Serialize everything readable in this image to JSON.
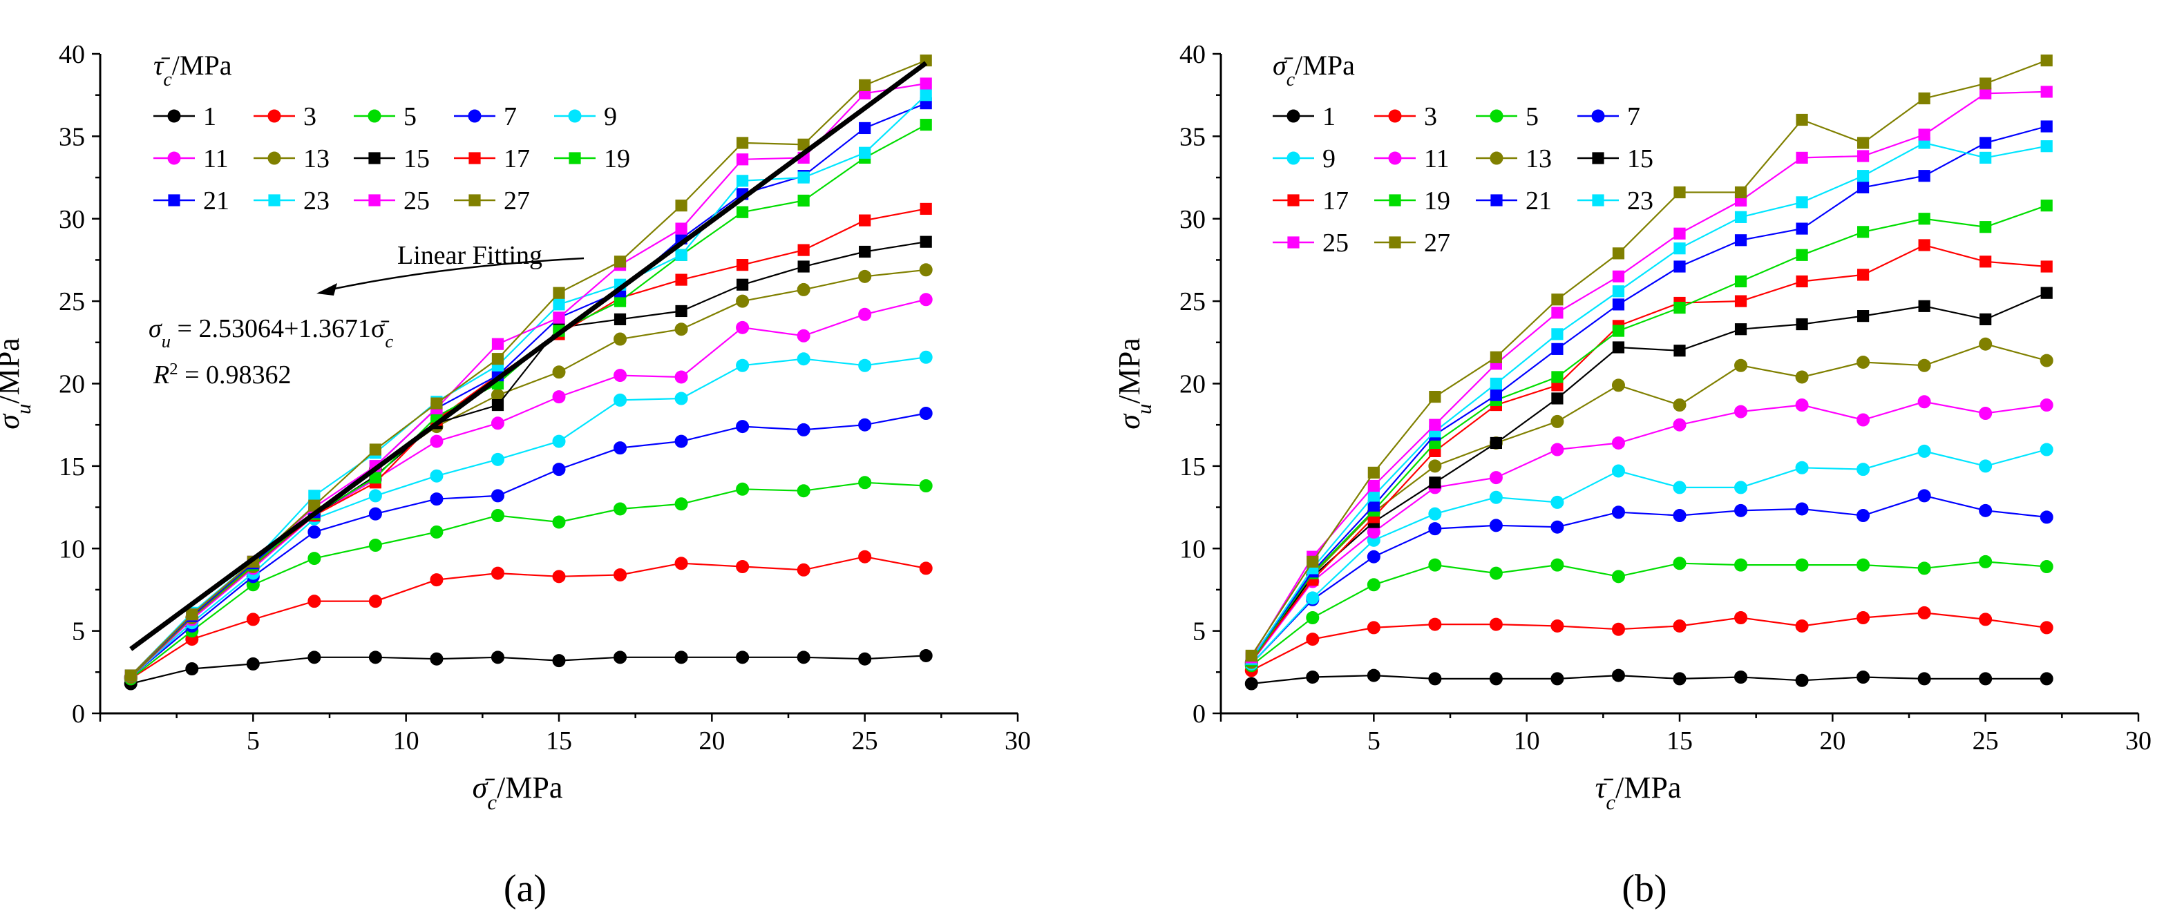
{
  "figure": {
    "panel_a_label": "(a)",
    "panel_b_label": "(b)"
  },
  "chart_data": [
    {
      "panel": "a",
      "type": "line",
      "xlabel": "σ̄c /MPa",
      "ylabel": "σu /MPa",
      "legend_title": "τ̄c /MPa",
      "xlim": [
        0,
        30
      ],
      "ylim": [
        0,
        40
      ],
      "xticks": [
        5,
        10,
        15,
        20,
        25,
        30
      ],
      "yticks": [
        0,
        5,
        10,
        15,
        20,
        25,
        30,
        35,
        40
      ],
      "x": [
        1,
        3,
        5,
        7,
        9,
        11,
        13,
        15,
        17,
        19,
        21,
        23,
        25,
        27
      ],
      "legend_columns": 5,
      "series": [
        {
          "name": "1",
          "color": "#000000",
          "marker": "circle",
          "values": [
            1.8,
            2.7,
            3.0,
            3.4,
            3.4,
            3.3,
            3.4,
            3.2,
            3.4,
            3.4,
            3.4,
            3.4,
            3.3,
            3.5
          ]
        },
        {
          "name": "3",
          "color": "#ff0000",
          "marker": "circle",
          "values": [
            2.1,
            4.5,
            5.7,
            6.8,
            6.8,
            8.1,
            8.5,
            8.3,
            8.4,
            9.1,
            8.9,
            8.7,
            9.5,
            8.8
          ]
        },
        {
          "name": "5",
          "color": "#00dd00",
          "marker": "circle",
          "values": [
            2.1,
            5.0,
            7.8,
            9.4,
            10.2,
            11.0,
            12.0,
            11.6,
            12.4,
            12.7,
            13.6,
            13.5,
            14.0,
            13.8
          ]
        },
        {
          "name": "7",
          "color": "#0000ff",
          "marker": "circle",
          "values": [
            2.2,
            5.3,
            8.3,
            11.0,
            12.1,
            13.0,
            13.2,
            14.8,
            16.1,
            16.5,
            17.4,
            17.2,
            17.5,
            18.2
          ]
        },
        {
          "name": "9",
          "color": "#00e5ff",
          "marker": "circle",
          "values": [
            2.2,
            5.5,
            8.5,
            11.8,
            13.2,
            14.4,
            15.4,
            16.5,
            19.0,
            19.1,
            21.1,
            21.5,
            21.1,
            21.6
          ]
        },
        {
          "name": "11",
          "color": "#ff00ff",
          "marker": "circle",
          "values": [
            2.2,
            5.7,
            8.8,
            12.0,
            14.2,
            16.5,
            17.6,
            19.2,
            20.5,
            20.4,
            23.4,
            22.9,
            24.2,
            25.1
          ]
        },
        {
          "name": "13",
          "color": "#808000",
          "marker": "circle",
          "values": [
            2.2,
            5.8,
            8.9,
            12.1,
            14.8,
            17.4,
            19.3,
            20.7,
            22.7,
            23.3,
            25.0,
            25.7,
            26.5,
            26.9
          ]
        },
        {
          "name": "15",
          "color": "#000000",
          "marker": "square",
          "values": [
            2.3,
            5.9,
            9.0,
            12.0,
            14.4,
            17.6,
            18.7,
            23.4,
            23.9,
            24.4,
            26.0,
            27.1,
            28.0,
            28.6
          ]
        },
        {
          "name": "17",
          "color": "#ff0000",
          "marker": "square",
          "values": [
            2.3,
            5.9,
            9.0,
            12.0,
            14.0,
            17.8,
            20.5,
            23.0,
            25.2,
            26.3,
            27.2,
            28.1,
            29.9,
            30.6
          ]
        },
        {
          "name": "19",
          "color": "#00dd00",
          "marker": "square",
          "values": [
            2.3,
            5.9,
            9.0,
            12.1,
            14.3,
            18.0,
            20.0,
            23.2,
            25.0,
            27.8,
            30.4,
            31.1,
            33.7,
            35.7
          ]
        },
        {
          "name": "21",
          "color": "#0000ff",
          "marker": "square",
          "values": [
            2.3,
            5.9,
            9.1,
            12.2,
            15.0,
            18.5,
            20.5,
            24.0,
            25.6,
            28.8,
            31.5,
            32.6,
            35.5,
            37.0
          ]
        },
        {
          "name": "23",
          "color": "#00e5ff",
          "marker": "square",
          "values": [
            2.3,
            6.1,
            9.2,
            13.2,
            15.8,
            18.9,
            21.1,
            24.8,
            26.0,
            27.8,
            32.3,
            32.5,
            34.0,
            37.5
          ]
        },
        {
          "name": "25",
          "color": "#ff00ff",
          "marker": "square",
          "values": [
            2.3,
            6.0,
            9.2,
            12.5,
            15.0,
            18.5,
            22.4,
            24.0,
            27.2,
            29.4,
            33.6,
            33.7,
            37.6,
            38.2
          ]
        },
        {
          "name": "27",
          "color": "#808000",
          "marker": "square",
          "values": [
            2.3,
            6.0,
            9.2,
            12.6,
            16.0,
            18.8,
            21.5,
            25.5,
            27.4,
            30.8,
            34.6,
            34.5,
            38.1,
            39.6
          ]
        }
      ],
      "fit_line": {
        "label": "Linear Fitting",
        "intercept": 2.53064,
        "slope": 1.3671,
        "x_range": [
          1,
          27
        ]
      },
      "annotations": {
        "equation_lhs": "σ",
        "equation_sub": "u",
        "equation_rhs": " = 2.53064+1.3671σ̄",
        "equation_rhs_sub": "c",
        "r2_label": "R",
        "r2_value": " = 0.98362"
      }
    },
    {
      "panel": "b",
      "type": "line",
      "xlabel": "τ̄c /MPa",
      "ylabel": "σu /MPa",
      "legend_title": "σ̄c /MPa",
      "xlim": [
        0,
        30
      ],
      "ylim": [
        0,
        40
      ],
      "xticks": [
        5,
        10,
        15,
        20,
        25,
        30
      ],
      "yticks": [
        0,
        5,
        10,
        15,
        20,
        25,
        30,
        35,
        40
      ],
      "x": [
        1,
        3,
        5,
        7,
        9,
        11,
        13,
        15,
        17,
        19,
        21,
        23,
        25,
        27
      ],
      "legend_columns": 4,
      "series": [
        {
          "name": "1",
          "color": "#000000",
          "marker": "circle",
          "values": [
            1.8,
            2.2,
            2.3,
            2.1,
            2.1,
            2.1,
            2.3,
            2.1,
            2.2,
            2.0,
            2.2,
            2.1,
            2.1,
            2.1
          ]
        },
        {
          "name": "3",
          "color": "#ff0000",
          "marker": "circle",
          "values": [
            2.6,
            4.5,
            5.2,
            5.4,
            5.4,
            5.3,
            5.1,
            5.3,
            5.8,
            5.3,
            5.8,
            6.1,
            5.7,
            5.2
          ]
        },
        {
          "name": "5",
          "color": "#00dd00",
          "marker": "circle",
          "values": [
            2.9,
            5.8,
            7.8,
            9.0,
            8.5,
            9.0,
            8.3,
            9.1,
            9.0,
            9.0,
            9.0,
            8.8,
            9.2,
            8.9
          ]
        },
        {
          "name": "7",
          "color": "#0000ff",
          "marker": "circle",
          "values": [
            3.0,
            6.9,
            9.5,
            11.2,
            11.4,
            11.3,
            12.2,
            12.0,
            12.3,
            12.4,
            12.0,
            13.2,
            12.3,
            11.9
          ]
        },
        {
          "name": "9",
          "color": "#00e5ff",
          "marker": "circle",
          "values": [
            3.0,
            7.0,
            10.5,
            12.1,
            13.1,
            12.8,
            14.7,
            13.7,
            13.7,
            14.9,
            14.8,
            15.9,
            15.0,
            16.0
          ]
        },
        {
          "name": "11",
          "color": "#ff00ff",
          "marker": "circle",
          "values": [
            3.1,
            8.0,
            11.0,
            13.7,
            14.3,
            16.0,
            16.4,
            17.5,
            18.3,
            18.7,
            17.8,
            18.9,
            18.2,
            18.7
          ]
        },
        {
          "name": "13",
          "color": "#808000",
          "marker": "circle",
          "values": [
            3.1,
            8.4,
            12.2,
            15.0,
            16.4,
            17.7,
            19.9,
            18.7,
            21.1,
            20.4,
            21.3,
            21.1,
            22.4,
            21.4
          ]
        },
        {
          "name": "15",
          "color": "#000000",
          "marker": "square",
          "values": [
            3.2,
            8.3,
            11.6,
            14.0,
            16.4,
            19.1,
            22.2,
            22.0,
            23.3,
            23.6,
            24.1,
            24.7,
            23.9,
            25.5
          ]
        },
        {
          "name": "17",
          "color": "#ff0000",
          "marker": "square",
          "values": [
            3.2,
            8.1,
            11.9,
            15.9,
            18.7,
            19.9,
            23.5,
            24.9,
            25.0,
            26.2,
            26.6,
            28.4,
            27.4,
            27.1
          ]
        },
        {
          "name": "19",
          "color": "#00dd00",
          "marker": "square",
          "values": [
            3.2,
            8.5,
            12.3,
            16.4,
            19.0,
            20.4,
            23.2,
            24.6,
            26.2,
            27.8,
            29.2,
            30.0,
            29.5,
            30.8
          ]
        },
        {
          "name": "21",
          "color": "#0000ff",
          "marker": "square",
          "values": [
            3.3,
            8.6,
            12.6,
            16.9,
            19.3,
            22.1,
            24.8,
            27.1,
            28.7,
            29.4,
            31.9,
            32.6,
            34.6,
            35.6
          ]
        },
        {
          "name": "23",
          "color": "#00e5ff",
          "marker": "square",
          "values": [
            3.3,
            8.8,
            13.2,
            17.1,
            20.0,
            23.0,
            25.6,
            28.2,
            30.1,
            31.0,
            32.6,
            34.6,
            33.7,
            34.4
          ]
        },
        {
          "name": "25",
          "color": "#ff00ff",
          "marker": "square",
          "values": [
            3.4,
            9.5,
            13.8,
            17.5,
            21.2,
            24.3,
            26.5,
            29.1,
            31.1,
            33.7,
            33.8,
            35.1,
            37.6,
            37.7
          ]
        },
        {
          "name": "27",
          "color": "#808000",
          "marker": "square",
          "values": [
            3.5,
            9.2,
            14.6,
            19.2,
            21.6,
            25.1,
            27.9,
            31.6,
            31.6,
            36.0,
            34.6,
            37.3,
            38.2,
            39.6
          ]
        }
      ]
    }
  ]
}
